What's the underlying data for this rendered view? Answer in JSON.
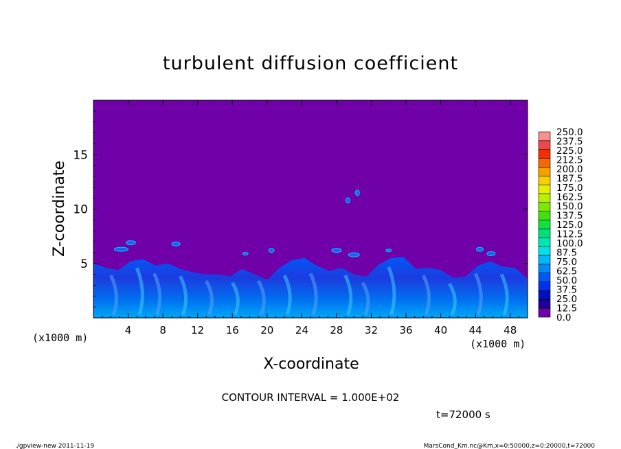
{
  "chart_data": {
    "type": "heatmap",
    "title": "turbulent diffusion coefficient",
    "xlabel": "X-coordinate",
    "ylabel": "Z-coordinate",
    "xunit": "(x1000 m)",
    "yunit": "(x1000 m)",
    "xlim": [
      0,
      50
    ],
    "ylim": [
      0,
      20
    ],
    "xticks": [
      4,
      8,
      12,
      16,
      20,
      24,
      28,
      32,
      36,
      40,
      44,
      48
    ],
    "yticks": [
      5,
      10,
      15
    ],
    "contour_interval": "CONTOUR INTERVAL = 1.000E+02",
    "time_label": "t=72000 s",
    "colorbar": {
      "levels": [
        "0.0",
        "12.5",
        "25.0",
        "37.5",
        "50.0",
        "62.5",
        "75.0",
        "87.5",
        "100.0",
        "112.5",
        "125.0",
        "137.5",
        "150.0",
        "162.5",
        "175.0",
        "187.5",
        "200.0",
        "212.5",
        "225.0",
        "237.5",
        "250.0"
      ],
      "colors": [
        "#7000a8",
        "#1c0098",
        "#0010c0",
        "#0030e8",
        "#0058f8",
        "#0088f8",
        "#00b8f8",
        "#00e0e8",
        "#00e8b0",
        "#00e078",
        "#10e040",
        "#40e010",
        "#80e800",
        "#b8f000",
        "#e8f000",
        "#f8d000",
        "#f8a000",
        "#f86800",
        "#f03000",
        "#f04848",
        "#f89090"
      ]
    },
    "field": {
      "background_value": 0.0,
      "turbulent_layer_top_approx": [
        5.0,
        4.6,
        4.4,
        5.2,
        5.4,
        4.8,
        5.0,
        4.5,
        4.2,
        4.0,
        4.0,
        3.8,
        4.5,
        4.0,
        3.5,
        4.6,
        5.3,
        5.5,
        4.8,
        4.3,
        4.6,
        4.0,
        3.8,
        4.9,
        5.5,
        5.6,
        4.5,
        4.6,
        4.4,
        3.7,
        3.8,
        4.8,
        5.2,
        4.7,
        4.6,
        3.6
      ]
    }
  },
  "footer": {
    "left": "./gpview-new   2011-11-19",
    "right": "MarsCond_Km.nc@Km,x=0:50000,z=0:20000,t=72000"
  }
}
